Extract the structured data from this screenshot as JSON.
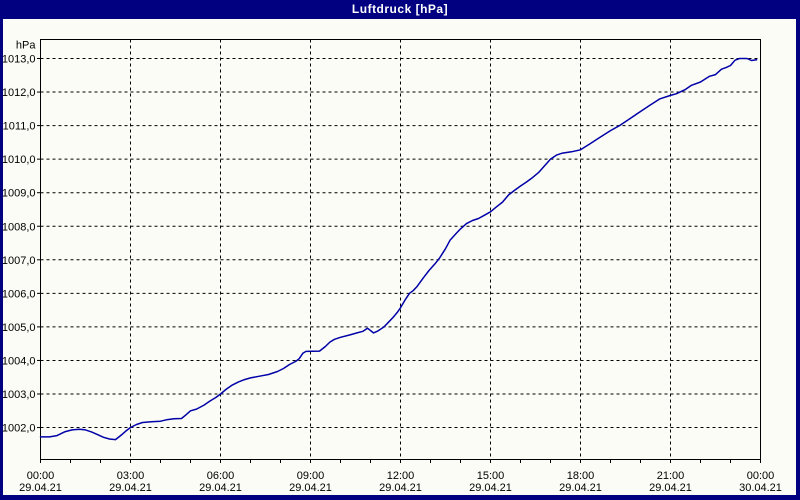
{
  "window": {
    "title": "Luftdruck [hPa]"
  },
  "colors": {
    "frame": "#000080",
    "panel": "#fcfcf6",
    "title_text": "#ffffff",
    "grid": "#000000",
    "axis": "#000000",
    "label_text": "#000000",
    "line": "#0000a8"
  },
  "chart_data": {
    "type": "line",
    "title": "Luftdruck [hPa]",
    "ylabel": "hPa",
    "unit_label": "hPa",
    "grid": "dashed",
    "legend": "none",
    "ylim": [
      1001.0,
      1013.6
    ],
    "xlim_hours": [
      0,
      24
    ],
    "x_minor_tick_hours": 1,
    "y_ticks": [
      {
        "value": 1013.0,
        "label": "1013,0"
      },
      {
        "value": 1012.0,
        "label": "1012,0"
      },
      {
        "value": 1011.0,
        "label": "1011,0"
      },
      {
        "value": 1010.0,
        "label": "1010,0"
      },
      {
        "value": 1009.0,
        "label": "1009,0"
      },
      {
        "value": 1008.0,
        "label": "1008,0"
      },
      {
        "value": 1007.0,
        "label": "1007,0"
      },
      {
        "value": 1006.0,
        "label": "1006,0"
      },
      {
        "value": 1005.0,
        "label": "1005,0"
      },
      {
        "value": 1004.0,
        "label": "1004,0"
      },
      {
        "value": 1003.0,
        "label": "1003,0"
      },
      {
        "value": 1002.0,
        "label": "1002,0"
      }
    ],
    "x_ticks": [
      {
        "hour": 0,
        "time": "00:00",
        "date": "29.04.21"
      },
      {
        "hour": 3,
        "time": "03:00",
        "date": "29.04.21"
      },
      {
        "hour": 6,
        "time": "06:00",
        "date": "29.04.21"
      },
      {
        "hour": 9,
        "time": "09:00",
        "date": "29.04.21"
      },
      {
        "hour": 12,
        "time": "12:00",
        "date": "29.04.21"
      },
      {
        "hour": 15,
        "time": "15:00",
        "date": "29.04.21"
      },
      {
        "hour": 18,
        "time": "18:00",
        "date": "29.04.21"
      },
      {
        "hour": 21,
        "time": "21:00",
        "date": "29.04.21"
      },
      {
        "hour": 24,
        "time": "00:00",
        "date": "30.04.21"
      }
    ],
    "series": [
      {
        "name": "Luftdruck",
        "color": "#0000a8",
        "points_hour_hpa": [
          [
            0.0,
            1001.72
          ],
          [
            0.3,
            1001.72
          ],
          [
            0.55,
            1001.76
          ],
          [
            0.8,
            1001.87
          ],
          [
            1.05,
            1001.93
          ],
          [
            1.3,
            1001.95
          ],
          [
            1.5,
            1001.93
          ],
          [
            1.7,
            1001.87
          ],
          [
            1.9,
            1001.79
          ],
          [
            2.1,
            1001.71
          ],
          [
            2.3,
            1001.66
          ],
          [
            2.5,
            1001.64
          ],
          [
            2.7,
            1001.78
          ],
          [
            2.85,
            1001.9
          ],
          [
            3.0,
            1002.0
          ],
          [
            3.2,
            1002.09
          ],
          [
            3.4,
            1002.15
          ],
          [
            3.7,
            1002.17
          ],
          [
            4.0,
            1002.19
          ],
          [
            4.2,
            1002.23
          ],
          [
            4.45,
            1002.26
          ],
          [
            4.7,
            1002.27
          ],
          [
            4.85,
            1002.38
          ],
          [
            5.0,
            1002.5
          ],
          [
            5.2,
            1002.55
          ],
          [
            5.45,
            1002.67
          ],
          [
            5.65,
            1002.79
          ],
          [
            5.85,
            1002.9
          ],
          [
            6.0,
            1003.0
          ],
          [
            6.2,
            1003.15
          ],
          [
            6.4,
            1003.27
          ],
          [
            6.6,
            1003.36
          ],
          [
            6.8,
            1003.43
          ],
          [
            7.0,
            1003.48
          ],
          [
            7.3,
            1003.53
          ],
          [
            7.6,
            1003.58
          ],
          [
            7.9,
            1003.67
          ],
          [
            8.1,
            1003.76
          ],
          [
            8.3,
            1003.88
          ],
          [
            8.5,
            1003.97
          ],
          [
            8.62,
            1004.05
          ],
          [
            8.75,
            1004.22
          ],
          [
            8.85,
            1004.27
          ],
          [
            9.3,
            1004.28
          ],
          [
            9.5,
            1004.42
          ],
          [
            9.65,
            1004.55
          ],
          [
            9.8,
            1004.63
          ],
          [
            10.0,
            1004.69
          ],
          [
            10.3,
            1004.76
          ],
          [
            10.55,
            1004.82
          ],
          [
            10.75,
            1004.87
          ],
          [
            10.9,
            1004.96
          ],
          [
            11.1,
            1004.82
          ],
          [
            11.25,
            1004.88
          ],
          [
            11.45,
            1005.0
          ],
          [
            11.6,
            1005.14
          ],
          [
            11.75,
            1005.28
          ],
          [
            11.9,
            1005.44
          ],
          [
            12.0,
            1005.57
          ],
          [
            12.15,
            1005.8
          ],
          [
            12.3,
            1006.0
          ],
          [
            12.42,
            1006.08
          ],
          [
            12.55,
            1006.2
          ],
          [
            12.75,
            1006.45
          ],
          [
            12.95,
            1006.68
          ],
          [
            13.15,
            1006.88
          ],
          [
            13.3,
            1007.05
          ],
          [
            13.5,
            1007.33
          ],
          [
            13.65,
            1007.58
          ],
          [
            13.85,
            1007.78
          ],
          [
            14.0,
            1007.92
          ],
          [
            14.2,
            1008.08
          ],
          [
            14.4,
            1008.17
          ],
          [
            14.6,
            1008.23
          ],
          [
            14.8,
            1008.33
          ],
          [
            15.0,
            1008.43
          ],
          [
            15.2,
            1008.58
          ],
          [
            15.4,
            1008.72
          ],
          [
            15.6,
            1008.93
          ],
          [
            15.8,
            1009.07
          ],
          [
            16.0,
            1009.2
          ],
          [
            16.2,
            1009.32
          ],
          [
            16.4,
            1009.45
          ],
          [
            16.6,
            1009.6
          ],
          [
            16.8,
            1009.8
          ],
          [
            17.0,
            1010.0
          ],
          [
            17.2,
            1010.12
          ],
          [
            17.4,
            1010.18
          ],
          [
            17.7,
            1010.22
          ],
          [
            18.0,
            1010.28
          ],
          [
            18.3,
            1010.45
          ],
          [
            18.6,
            1010.62
          ],
          [
            19.0,
            1010.85
          ],
          [
            19.3,
            1011.0
          ],
          [
            19.6,
            1011.18
          ],
          [
            20.0,
            1011.42
          ],
          [
            20.3,
            1011.6
          ],
          [
            20.65,
            1011.8
          ],
          [
            21.0,
            1011.9
          ],
          [
            21.2,
            1011.95
          ],
          [
            21.5,
            1012.08
          ],
          [
            21.7,
            1012.2
          ],
          [
            22.0,
            1012.3
          ],
          [
            22.3,
            1012.47
          ],
          [
            22.5,
            1012.52
          ],
          [
            22.7,
            1012.68
          ],
          [
            22.85,
            1012.73
          ],
          [
            23.0,
            1012.79
          ],
          [
            23.15,
            1012.95
          ],
          [
            23.3,
            1013.0
          ],
          [
            23.55,
            1013.0
          ],
          [
            23.7,
            1012.94
          ],
          [
            23.87,
            1012.96
          ]
        ]
      }
    ]
  }
}
